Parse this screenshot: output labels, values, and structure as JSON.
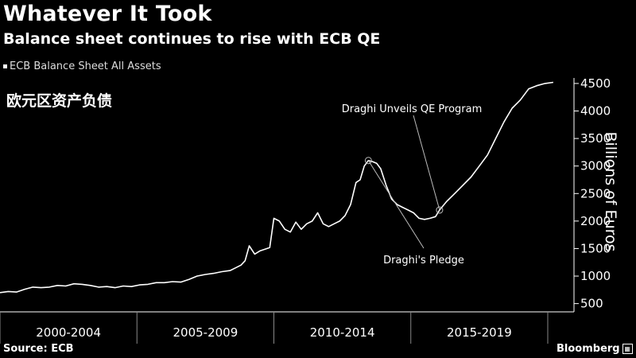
{
  "header": {
    "title": "Whatever It Took",
    "subtitle": "Balance sheet continues to rise with ECB QE",
    "legend_label": "ECB Balance Sheet All Assets",
    "chinese_caption": "欧元区资产负债"
  },
  "footer": {
    "source": "Source: ECB",
    "brand": "Bloomberg"
  },
  "colors": {
    "background": "#000000",
    "line": "#ffffff",
    "axis": "#ffffff"
  },
  "chart_data": {
    "type": "line",
    "title": "Whatever It Took",
    "subtitle": "Balance sheet continues to rise with ECB QE",
    "ylabel": "Billions of Euros",
    "ylim": [
      350,
      4600
    ],
    "yticks": [
      500,
      1000,
      1500,
      2000,
      2500,
      3000,
      3500,
      4000,
      4500
    ],
    "xlim": [
      1999.0,
      2019.9
    ],
    "x_period_labels": [
      "2000-2004",
      "2005-2009",
      "2010-2014",
      "2015-2019"
    ],
    "x_period_bounds": [
      1999.0,
      2004.0,
      2009.0,
      2014.0,
      2019.0
    ],
    "grid": false,
    "legend_position": "top-left",
    "series": [
      {
        "name": "ECB Balance Sheet All Assets",
        "x": [
          1999.0,
          1999.3,
          1999.6,
          1999.9,
          2000.2,
          2000.5,
          2000.8,
          2001.1,
          2001.4,
          2001.7,
          2002.0,
          2002.3,
          2002.6,
          2002.9,
          2003.2,
          2003.5,
          2003.8,
          2004.1,
          2004.4,
          2004.7,
          2005.0,
          2005.3,
          2005.6,
          2005.9,
          2006.2,
          2006.5,
          2006.8,
          2007.1,
          2007.4,
          2007.6,
          2007.8,
          2007.95,
          2008.1,
          2008.3,
          2008.5,
          2008.75,
          2008.85,
          2009.0,
          2009.2,
          2009.4,
          2009.6,
          2009.8,
          2010.0,
          2010.2,
          2010.4,
          2010.6,
          2010.8,
          2011.0,
          2011.2,
          2011.4,
          2011.6,
          2011.8,
          2012.0,
          2012.15,
          2012.3,
          2012.45,
          2012.6,
          2012.75,
          2012.9,
          2013.1,
          2013.3,
          2013.5,
          2013.7,
          2013.9,
          2014.1,
          2014.3,
          2014.5,
          2014.7,
          2014.9,
          2015.05,
          2015.3,
          2015.6,
          2015.9,
          2016.2,
          2016.5,
          2016.8,
          2017.1,
          2017.4,
          2017.7,
          2018.0,
          2018.3,
          2018.6,
          2018.9,
          2019.2
        ],
        "values": [
          700,
          720,
          710,
          760,
          800,
          790,
          800,
          830,
          820,
          860,
          850,
          830,
          800,
          810,
          790,
          820,
          810,
          840,
          850,
          880,
          880,
          900,
          890,
          940,
          1000,
          1030,
          1050,
          1080,
          1100,
          1150,
          1200,
          1280,
          1550,
          1400,
          1460,
          1500,
          1520,
          2050,
          2000,
          1850,
          1800,
          1980,
          1850,
          1950,
          2000,
          2150,
          1950,
          1900,
          1950,
          2000,
          2100,
          2300,
          2700,
          2750,
          3000,
          3100,
          3080,
          3050,
          2950,
          2650,
          2400,
          2300,
          2250,
          2200,
          2150,
          2050,
          2030,
          2050,
          2080,
          2200,
          2350,
          2500,
          2650,
          2800,
          3000,
          3200,
          3500,
          3800,
          4050,
          4200,
          4400,
          4460,
          4500,
          4520
        ]
      }
    ],
    "annotations": [
      {
        "text": "Draghi Unveils QE Program",
        "x": 2015.05,
        "y": 2200
      },
      {
        "text": "Draghi's Pledge",
        "x": 2012.45,
        "y": 3100
      }
    ]
  }
}
